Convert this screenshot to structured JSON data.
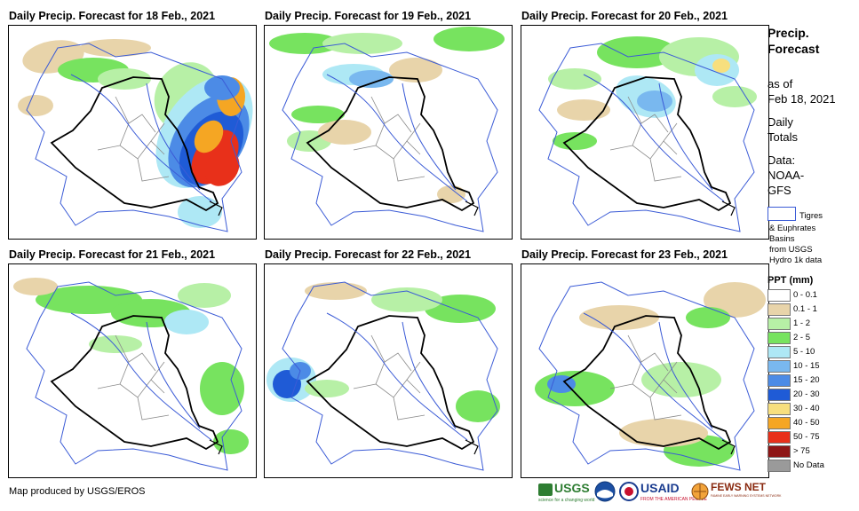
{
  "panels": [
    {
      "title": "Daily Precip. Forecast for 18 Feb., 2021"
    },
    {
      "title": "Daily Precip. Forecast for 19 Feb., 2021"
    },
    {
      "title": "Daily Precip. Forecast for 20 Feb., 2021"
    },
    {
      "title": "Daily Precip. Forecast for 21 Feb., 2021"
    },
    {
      "title": "Daily Precip. Forecast for 22 Feb., 2021"
    },
    {
      "title": "Daily Precip. Forecast for 23 Feb., 2021"
    }
  ],
  "sidebar": {
    "title_line1": "Precip.",
    "title_line2": "Forecast",
    "asof_line1": "as of",
    "asof_line2": "Feb 18, 2021",
    "daily_line1": "Daily",
    "daily_line2": "Totals",
    "data_line1": "Data:",
    "data_line2": "NOAA-",
    "data_line3": "GFS",
    "basin_line1": "Tigres",
    "basin_line2": "& Euphrates",
    "basin_line3": "Basins",
    "basin_line4": "from USGS",
    "basin_line5": "Hydro 1k data"
  },
  "legend": {
    "title": "PPT (mm)",
    "items": [
      {
        "label": "0 - 0.1",
        "color": "#ffffff"
      },
      {
        "label": "0.1 - 1",
        "color": "#e8d4aa"
      },
      {
        "label": "1 - 2",
        "color": "#b7f0a6"
      },
      {
        "label": "2 - 5",
        "color": "#77e35f"
      },
      {
        "label": "5 - 10",
        "color": "#aee8f5"
      },
      {
        "label": "10 - 15",
        "color": "#79b8ef"
      },
      {
        "label": "15 - 20",
        "color": "#4c8be6"
      },
      {
        "label": "20 - 30",
        "color": "#1f5bd6"
      },
      {
        "label": "30 - 40",
        "color": "#f7df7e"
      },
      {
        "label": "40 - 50",
        "color": "#f5a623"
      },
      {
        "label": "50 - 75",
        "color": "#e8301a"
      },
      {
        "label": "> 75",
        "color": "#8e1616"
      },
      {
        "label": "No Data",
        "color": "#9a9a9a"
      }
    ]
  },
  "footer": {
    "credit": "Map produced by USGS/EROS",
    "logos": {
      "usgs": "USGS",
      "usgs_tagline": "science for a changing world",
      "usaid": "USAID",
      "usaid_tagline": "FROM THE AMERICAN PEOPLE",
      "fewsnet": "FEWS NET",
      "fewsnet_tagline": "FAMINE EARLY WARNING SYSTEMS NETWORK"
    }
  }
}
